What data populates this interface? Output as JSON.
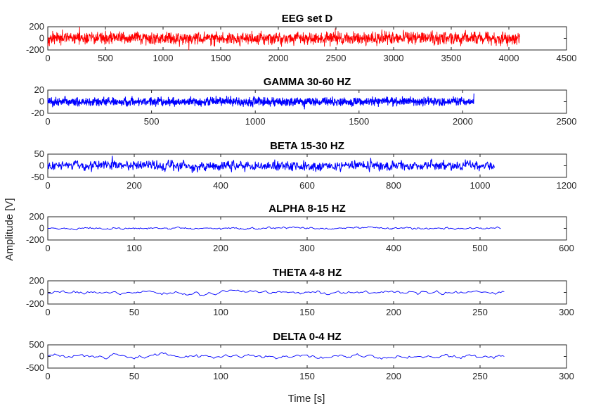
{
  "figure": {
    "ylabel": "Amplitude [V]",
    "xlabel": "Time [s]"
  },
  "chart_data": [
    {
      "type": "line",
      "title": "EEG set D",
      "series": [
        {
          "name": "EEG set D",
          "color": "#ff0000",
          "n_points": 4097,
          "x_start": 0,
          "x_end": 4096,
          "typical_amplitude": 60
        }
      ],
      "xlim": [
        0,
        4500
      ],
      "xticks": [
        0,
        500,
        1000,
        1500,
        2000,
        2500,
        3000,
        3500,
        4000,
        4500
      ],
      "ylim": [
        -200,
        200
      ],
      "yticks": [
        -200,
        0,
        200
      ]
    },
    {
      "type": "line",
      "title": "GAMMA 30-60 HZ",
      "series": [
        {
          "name": "Gamma",
          "color": "#0000ff",
          "n_points": 2055,
          "x_start": 0,
          "x_end": 2054,
          "typical_amplitude": 4,
          "final_spike": 14
        }
      ],
      "xlim": [
        0,
        2500
      ],
      "xticks": [
        0,
        500,
        1000,
        1500,
        2000,
        2500
      ],
      "ylim": [
        -20,
        20
      ],
      "yticks": [
        -20,
        0,
        20
      ]
    },
    {
      "type": "line",
      "title": "BETA 15-30 HZ",
      "series": [
        {
          "name": "Beta",
          "color": "#0000ff",
          "n_points": 1035,
          "x_start": 0,
          "x_end": 1034,
          "typical_amplitude": 12
        }
      ],
      "xlim": [
        0,
        1200
      ],
      "xticks": [
        0,
        200,
        400,
        600,
        800,
        1000,
        1200
      ],
      "ylim": [
        -50,
        50
      ],
      "yticks": [
        -50,
        0,
        50
      ]
    },
    {
      "type": "line",
      "title": "ALPHA 8-15 HZ",
      "series": [
        {
          "name": "Alpha",
          "color": "#0000ff",
          "n_points": 525,
          "x_start": 0,
          "x_end": 524,
          "typical_amplitude": 25
        }
      ],
      "xlim": [
        0,
        600
      ],
      "xticks": [
        0,
        100,
        200,
        300,
        400,
        500,
        600
      ],
      "ylim": [
        -200,
        200
      ],
      "yticks": [
        -200,
        0,
        200
      ]
    },
    {
      "type": "line",
      "title": "THETA 4-8 HZ",
      "series": [
        {
          "name": "Theta",
          "color": "#0000ff",
          "n_points": 265,
          "x_start": 0,
          "x_end": 264,
          "typical_amplitude": 45
        }
      ],
      "xlim": [
        0,
        300
      ],
      "xticks": [
        0,
        50,
        100,
        150,
        200,
        250,
        300
      ],
      "ylim": [
        -200,
        200
      ],
      "yticks": [
        -200,
        0,
        200
      ]
    },
    {
      "type": "line",
      "title": "DELTA 0-4 HZ",
      "series": [
        {
          "name": "Delta",
          "color": "#0000ff",
          "n_points": 265,
          "x_start": 0,
          "x_end": 264,
          "typical_amplitude": 130
        }
      ],
      "xlim": [
        0,
        300
      ],
      "xticks": [
        0,
        50,
        100,
        150,
        200,
        250,
        300
      ],
      "ylim": [
        -500,
        500
      ],
      "yticks": [
        -500,
        0,
        500
      ]
    }
  ]
}
